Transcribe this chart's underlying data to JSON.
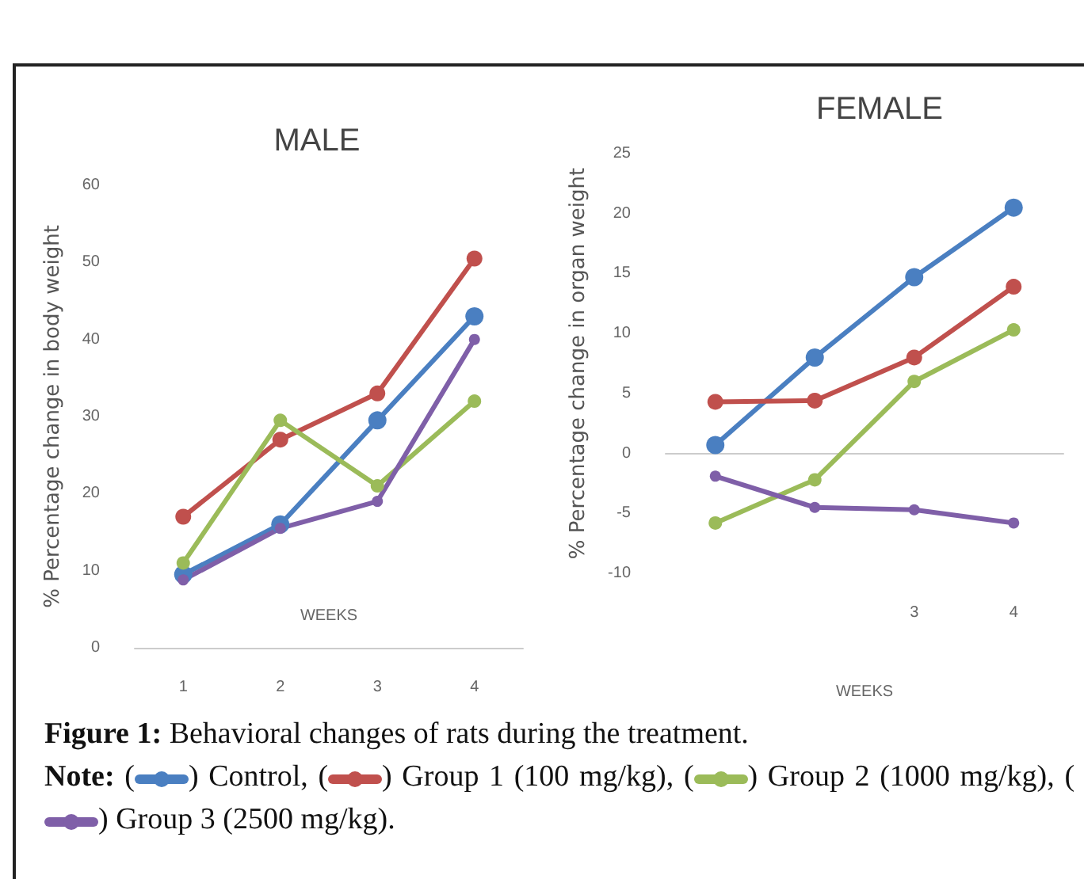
{
  "chart_data": [
    {
      "type": "line",
      "title": "MALE",
      "ylabel": "% Percentage change in body weight",
      "xlabel": "WEEKS",
      "categories": [
        "1",
        "2",
        "3",
        "4"
      ],
      "ylim": [
        0,
        60
      ],
      "yticks": [
        0,
        10,
        20,
        30,
        40,
        50,
        60
      ],
      "marker": "circle",
      "annotations": [
        "Figure 1: Behavioral changes of rats during the treatment.",
        "Note: ( ) Control, ( ) Group 1 (100 mg/kg), ( ) Group 2 (1000 mg/kg), ( ) Group 3 (2500 mg/kg)."
      ],
      "series": [
        {
          "color": "#4a7fc1",
          "values": [
            9.5,
            16,
            29.5,
            43
          ]
        },
        {
          "color": "#c0504d",
          "values": [
            17,
            27,
            33,
            50.5
          ]
        },
        {
          "color": "#9bbb59",
          "values": [
            11,
            29.5,
            21,
            32
          ]
        },
        {
          "color": "#7f5fa8",
          "values": [
            8.8,
            15.5,
            19,
            40
          ]
        }
      ]
    },
    {
      "type": "line",
      "title": "FEMALE",
      "ylabel": "% Percentage change in organ weight",
      "xlabel": "WEEKS",
      "categories": [
        null,
        null,
        "3",
        "4"
      ],
      "ylim": [
        -10,
        25
      ],
      "yticks": [
        -10,
        -5,
        0,
        5,
        10,
        15,
        20,
        25
      ],
      "marker": "circle",
      "series": [
        {
          "color": "#4a7fc1",
          "values": [
            0.7,
            8,
            14.7,
            20.5
          ]
        },
        {
          "color": "#c0504d",
          "values": [
            4.3,
            4.4,
            8,
            13.9
          ]
        },
        {
          "color": "#9bbb59",
          "values": [
            -5.8,
            -2.2,
            6,
            10.3
          ]
        },
        {
          "color": "#7f5fa8",
          "values": [
            -1.9,
            -4.5,
            -4.7,
            -5.8
          ]
        }
      ]
    }
  ]
}
